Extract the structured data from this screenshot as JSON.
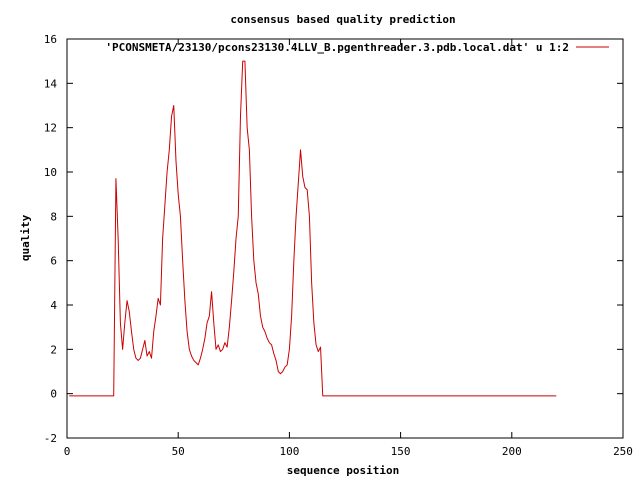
{
  "chart_data": {
    "type": "line",
    "title": "consensus based quality prediction",
    "xlabel": "sequence position",
    "ylabel": "quality",
    "xlim": [
      0,
      250
    ],
    "ylim": [
      -2,
      16
    ],
    "x_ticks": [
      0,
      50,
      100,
      150,
      200,
      250
    ],
    "y_ticks": [
      -2,
      0,
      2,
      4,
      6,
      8,
      10,
      12,
      14,
      16
    ],
    "grid": false,
    "legend": "top-right",
    "series": [
      {
        "name": "'PCONSMETA/23130/pcons23130.4LLV_B.pgenthreader.3.pdb.local.dat' u 1:2",
        "color": "#cc0000",
        "points": [
          [
            1,
            -0.1
          ],
          [
            21,
            -0.1
          ],
          [
            22,
            9.7
          ],
          [
            23,
            7.0
          ],
          [
            24,
            3.2
          ],
          [
            25,
            2.0
          ],
          [
            26,
            3.2
          ],
          [
            27,
            4.2
          ],
          [
            28,
            3.7
          ],
          [
            29,
            2.8
          ],
          [
            30,
            2.0
          ],
          [
            31,
            1.6
          ],
          [
            32,
            1.5
          ],
          [
            33,
            1.6
          ],
          [
            34,
            2.0
          ],
          [
            35,
            2.4
          ],
          [
            36,
            1.7
          ],
          [
            37,
            1.9
          ],
          [
            38,
            1.6
          ],
          [
            39,
            2.8
          ],
          [
            40,
            3.5
          ],
          [
            41,
            4.3
          ],
          [
            42,
            4.0
          ],
          [
            43,
            7.0
          ],
          [
            44,
            8.5
          ],
          [
            45,
            10.0
          ],
          [
            46,
            11.0
          ],
          [
            47,
            12.5
          ],
          [
            48,
            13.0
          ],
          [
            49,
            10.5
          ],
          [
            50,
            9.0
          ],
          [
            51,
            8.0
          ],
          [
            52,
            6.0
          ],
          [
            53,
            4.2
          ],
          [
            54,
            2.8
          ],
          [
            55,
            2.0
          ],
          [
            56,
            1.7
          ],
          [
            57,
            1.5
          ],
          [
            58,
            1.4
          ],
          [
            59,
            1.3
          ],
          [
            60,
            1.6
          ],
          [
            61,
            2.0
          ],
          [
            62,
            2.5
          ],
          [
            63,
            3.2
          ],
          [
            64,
            3.5
          ],
          [
            65,
            4.6
          ],
          [
            66,
            3.2
          ],
          [
            67,
            2.0
          ],
          [
            68,
            2.2
          ],
          [
            69,
            1.9
          ],
          [
            70,
            2.0
          ],
          [
            71,
            2.3
          ],
          [
            72,
            2.1
          ],
          [
            73,
            3.0
          ],
          [
            74,
            4.2
          ],
          [
            75,
            5.5
          ],
          [
            76,
            7.0
          ],
          [
            77,
            8.0
          ],
          [
            78,
            12.5
          ],
          [
            79,
            15.0
          ],
          [
            80,
            15.0
          ],
          [
            81,
            12.0
          ],
          [
            82,
            11.0
          ],
          [
            83,
            8.0
          ],
          [
            84,
            6.0
          ],
          [
            85,
            5.0
          ],
          [
            86,
            4.5
          ],
          [
            87,
            3.5
          ],
          [
            88,
            3.0
          ],
          [
            89,
            2.8
          ],
          [
            90,
            2.5
          ],
          [
            91,
            2.3
          ],
          [
            92,
            2.2
          ],
          [
            93,
            1.8
          ],
          [
            94,
            1.5
          ],
          [
            95,
            1.0
          ],
          [
            96,
            0.9
          ],
          [
            97,
            1.0
          ],
          [
            98,
            1.2
          ],
          [
            99,
            1.3
          ],
          [
            100,
            2.0
          ],
          [
            101,
            3.5
          ],
          [
            102,
            6.0
          ],
          [
            103,
            8.0
          ],
          [
            104,
            9.5
          ],
          [
            105,
            11.0
          ],
          [
            106,
            9.8
          ],
          [
            107,
            9.3
          ],
          [
            108,
            9.2
          ],
          [
            109,
            8.0
          ],
          [
            110,
            5.0
          ],
          [
            111,
            3.2
          ],
          [
            112,
            2.2
          ],
          [
            113,
            1.9
          ],
          [
            114,
            2.1
          ],
          [
            115,
            -0.1
          ],
          [
            220,
            -0.1
          ]
        ]
      }
    ]
  }
}
